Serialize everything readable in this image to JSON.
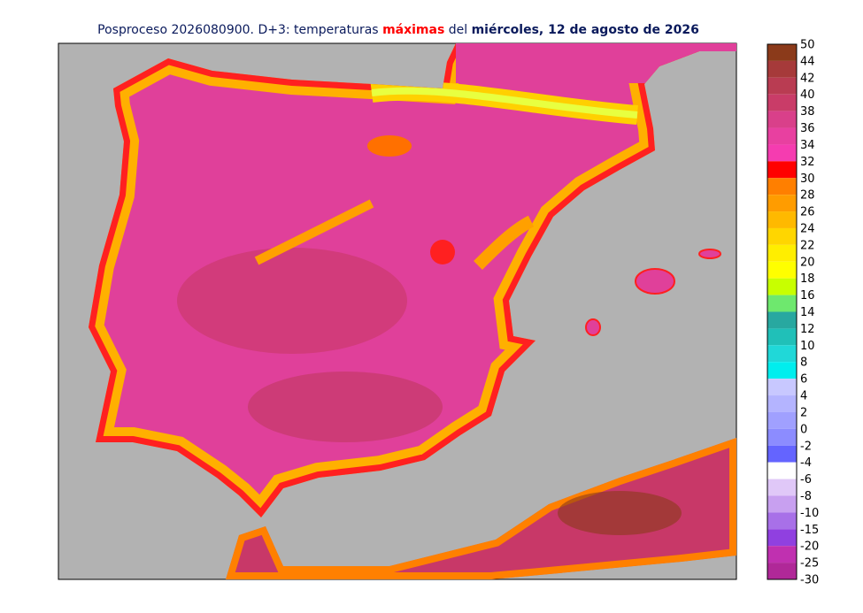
{
  "header": {
    "title_parts": [
      {
        "text": "Posproceso 2026080900. D+3: temperaturas ",
        "color": "#0a1a5c",
        "bold": false
      },
      {
        "text": "máximas",
        "color": "#ff0000",
        "bold": true
      },
      {
        "text": " del ",
        "color": "#0a1a5c",
        "bold": false
      },
      {
        "text": "miércoles, 12 de agosto de 2026",
        "color": "#0a1a5c",
        "bold": true
      }
    ]
  },
  "colorbar": {
    "levels": [
      50,
      44,
      42,
      40,
      38,
      36,
      34,
      32,
      30,
      28,
      26,
      24,
      22,
      20,
      18,
      16,
      14,
      12,
      10,
      8,
      6,
      4,
      2,
      0,
      -2,
      -4,
      -6,
      -8,
      -10,
      -15,
      -20,
      -25,
      -30
    ],
    "colors": [
      "#8b3a1a",
      "#a63a3a",
      "#b93c52",
      "#c93c68",
      "#d9408a",
      "#e840a0",
      "#f53cb0",
      "#ff0000",
      "#ff7f00",
      "#ff9c00",
      "#ffb900",
      "#ffd600",
      "#ffee00",
      "#ffff00",
      "#c8ff00",
      "#6ee86e",
      "#28a8a0",
      "#20c0b8",
      "#20d8d8",
      "#00eeee",
      "#c8c8ff",
      "#b4b4ff",
      "#a0a0ff",
      "#8c8cff",
      "#6464ff",
      "#ffffff",
      "#e0c8f8",
      "#c8a0f0",
      "#a870e8",
      "#9040e0",
      "#c030b0",
      "#b02898",
      "#902890",
      "#703088"
    ]
  }
}
